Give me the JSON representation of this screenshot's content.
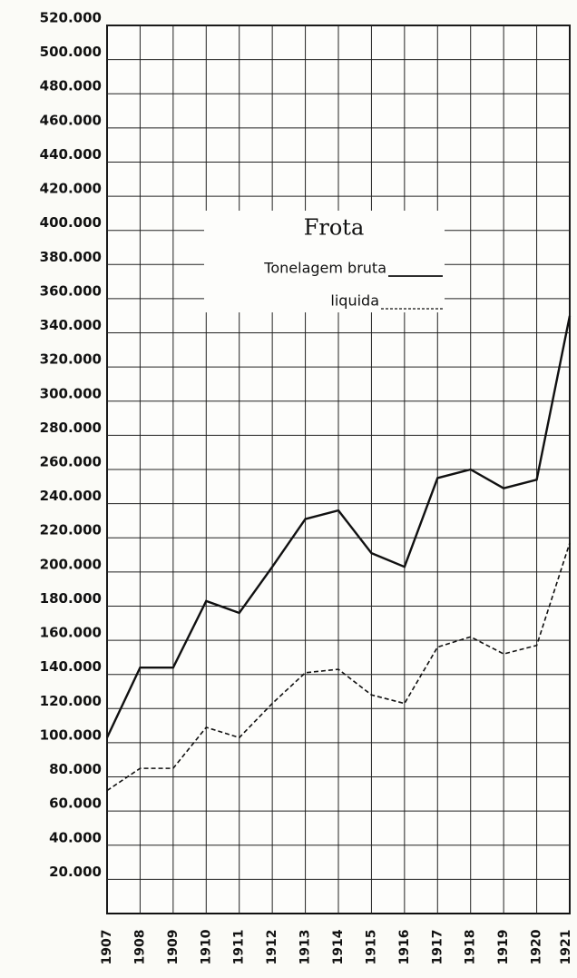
{
  "chart_data": {
    "type": "line",
    "title": "Frota",
    "categories": [
      "1907",
      "1908",
      "1909",
      "1910",
      "1911",
      "1912",
      "1913",
      "1914",
      "1915",
      "1916",
      "1917",
      "1918",
      "1919",
      "1920",
      "1921"
    ],
    "series": [
      {
        "name": "Tonelagem bruta",
        "color": "#111111",
        "dash": false,
        "values": [
          103000,
          144000,
          144000,
          183000,
          176000,
          203000,
          231000,
          236000,
          211000,
          203000,
          255000,
          260000,
          249000,
          254000,
          350000
        ]
      },
      {
        "name": "liquida",
        "color": "#111111",
        "dash": true,
        "values": [
          72000,
          85000,
          85000,
          109000,
          103000,
          123000,
          141000,
          143000,
          128000,
          123000,
          156000,
          162000,
          152000,
          157000,
          217000
        ]
      }
    ],
    "ylim": [
      0,
      520000
    ],
    "yticks": [
      {
        "value": 20000,
        "label": "20.000"
      },
      {
        "value": 40000,
        "label": "40.000"
      },
      {
        "value": 60000,
        "label": "60.000"
      },
      {
        "value": 80000,
        "label": "80.000"
      },
      {
        "value": 100000,
        "label": "100.000"
      },
      {
        "value": 120000,
        "label": "120.000"
      },
      {
        "value": 140000,
        "label": "140.000"
      },
      {
        "value": 160000,
        "label": "160.000"
      },
      {
        "value": 180000,
        "label": "180.000"
      },
      {
        "value": 200000,
        "label": "200.000"
      },
      {
        "value": 220000,
        "label": "220.000"
      },
      {
        "value": 240000,
        "label": "240.000"
      },
      {
        "value": 260000,
        "label": "260.000"
      },
      {
        "value": 280000,
        "label": "280.000"
      },
      {
        "value": 300000,
        "label": "300.000"
      },
      {
        "value": 320000,
        "label": "320.000"
      },
      {
        "value": 340000,
        "label": "340.000"
      },
      {
        "value": 360000,
        "label": "360.000"
      },
      {
        "value": 380000,
        "label": "380.000"
      },
      {
        "value": 400000,
        "label": "400.000"
      },
      {
        "value": 420000,
        "label": "420.000"
      },
      {
        "value": 440000,
        "label": "440.000"
      },
      {
        "value": 460000,
        "label": "460.000"
      },
      {
        "value": 480000,
        "label": "480.000"
      },
      {
        "value": 500000,
        "label": "500.000"
      },
      {
        "value": 520000,
        "label": "520.000"
      }
    ],
    "grid": true
  }
}
